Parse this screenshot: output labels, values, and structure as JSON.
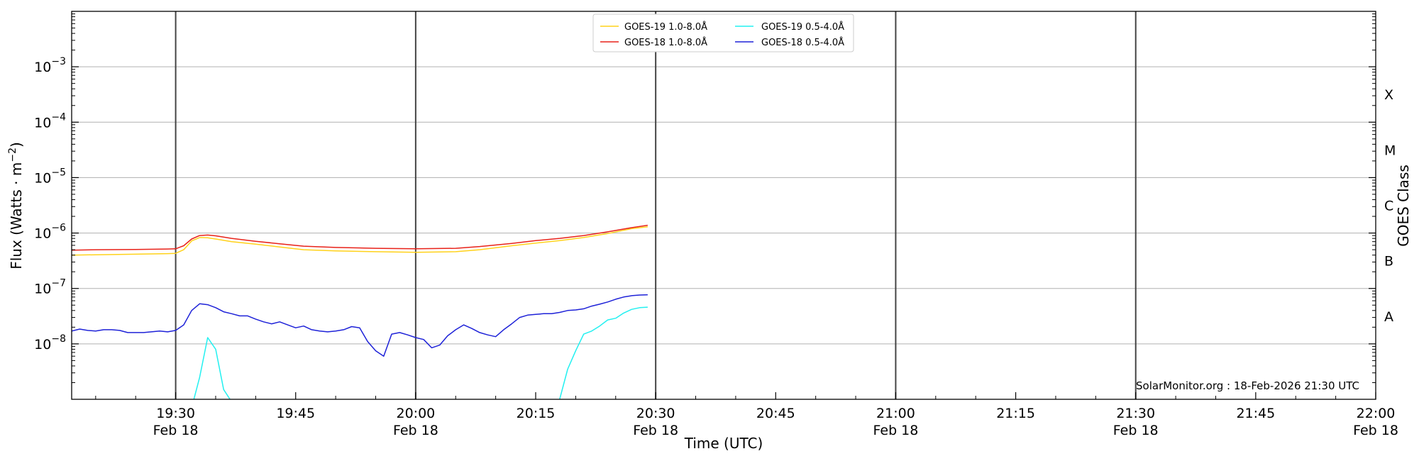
{
  "chart_data": {
    "type": "line",
    "xlabel": "Time (UTC)",
    "ylabel": "Flux (Watts · m",
    "ylabel_exp": "−2",
    "ylabel_close": ")",
    "right_label": "GOES Class",
    "date_label": "Feb 18",
    "x_start": "19:17",
    "x_end": "22:00",
    "x_ticks": [
      {
        "t": "19:30",
        "date": true
      },
      {
        "t": "19:45",
        "date": false
      },
      {
        "t": "20:00",
        "date": true
      },
      {
        "t": "20:15",
        "date": false
      },
      {
        "t": "20:30",
        "date": true
      },
      {
        "t": "20:45",
        "date": false
      },
      {
        "t": "21:00",
        "date": true
      },
      {
        "t": "21:15",
        "date": false
      },
      {
        "t": "21:30",
        "date": true
      },
      {
        "t": "21:45",
        "date": false
      },
      {
        "t": "22:00",
        "date": true
      }
    ],
    "vlines": [
      "19:30",
      "20:00",
      "20:30",
      "21:00",
      "21:30"
    ],
    "y_scale": "log",
    "y_range_exp": [
      -9,
      -2
    ],
    "y_ticks_exp": [
      -8,
      -7,
      -6,
      -5,
      -4,
      -3
    ],
    "grid": "horizontal",
    "goes_classes": [
      {
        "label": "A",
        "exp": -7.5
      },
      {
        "label": "B",
        "exp": -6.5
      },
      {
        "label": "C",
        "exp": -5.5
      },
      {
        "label": "M",
        "exp": -4.5
      },
      {
        "label": "X",
        "exp": -3.5
      }
    ],
    "legend_position": "top-center",
    "footer": "SolarMonitor.org : 18-Feb-2026 21:30 UTC",
    "series": [
      {
        "name": "GOES-19 1.0-8.0Å",
        "color": "#ffd21a",
        "points": [
          [
            "19:17",
            4e-07
          ],
          [
            "19:20",
            4.05e-07
          ],
          [
            "19:25",
            4.15e-07
          ],
          [
            "19:29",
            4.25e-07
          ],
          [
            "19:30",
            4.3e-07
          ],
          [
            "19:31",
            5e-07
          ],
          [
            "19:32",
            7.2e-07
          ],
          [
            "19:33",
            8.3e-07
          ],
          [
            "19:34",
            8.2e-07
          ],
          [
            "19:35",
            7.8e-07
          ],
          [
            "19:37",
            7e-07
          ],
          [
            "19:40",
            6.3e-07
          ],
          [
            "19:43",
            5.6e-07
          ],
          [
            "19:46",
            5e-07
          ],
          [
            "19:50",
            4.75e-07
          ],
          [
            "19:55",
            4.6e-07
          ],
          [
            "20:00",
            4.5e-07
          ],
          [
            "20:05",
            4.6e-07
          ],
          [
            "20:08",
            5e-07
          ],
          [
            "20:12",
            5.9e-07
          ],
          [
            "20:15",
            6.6e-07
          ],
          [
            "20:18",
            7.3e-07
          ],
          [
            "20:21",
            8.3e-07
          ],
          [
            "20:24",
            9.8e-07
          ],
          [
            "20:27",
            1.2e-06
          ],
          [
            "20:29",
            1.3e-06
          ]
        ]
      },
      {
        "name": "GOES-18 1.0-8.0Å",
        "color": "#e8221a",
        "points": [
          [
            "19:17",
            4.9e-07
          ],
          [
            "19:20",
            5e-07
          ],
          [
            "19:25",
            5.05e-07
          ],
          [
            "19:29",
            5.15e-07
          ],
          [
            "19:30",
            5.2e-07
          ],
          [
            "19:31",
            5.9e-07
          ],
          [
            "19:32",
            7.8e-07
          ],
          [
            "19:33",
            9e-07
          ],
          [
            "19:34",
            9.2e-07
          ],
          [
            "19:35",
            8.9e-07
          ],
          [
            "19:37",
            8e-07
          ],
          [
            "19:40",
            7.1e-07
          ],
          [
            "19:43",
            6.4e-07
          ],
          [
            "19:46",
            5.8e-07
          ],
          [
            "19:50",
            5.5e-07
          ],
          [
            "19:55",
            5.3e-07
          ],
          [
            "20:00",
            5.2e-07
          ],
          [
            "20:05",
            5.3e-07
          ],
          [
            "20:08",
            5.7e-07
          ],
          [
            "20:12",
            6.5e-07
          ],
          [
            "20:15",
            7.3e-07
          ],
          [
            "20:18",
            8e-07
          ],
          [
            "20:21",
            9e-07
          ],
          [
            "20:24",
            1.05e-06
          ],
          [
            "20:27",
            1.25e-06
          ],
          [
            "20:29",
            1.38e-06
          ]
        ]
      },
      {
        "name": "GOES-19 0.5-4.0Å",
        "color": "#22f0f0",
        "points": [
          [
            "19:32",
            7e-10
          ],
          [
            "19:33",
            2.5e-09
          ],
          [
            "19:34",
            1.3e-08
          ],
          [
            "19:35",
            8e-09
          ],
          [
            "19:36",
            1.5e-09
          ],
          [
            "19:37",
            9e-10
          ],
          [
            "19:38",
            7e-10
          ],
          [
            "20:17",
            7e-10
          ],
          [
            "20:18",
            1e-09
          ],
          [
            "20:19",
            3.5e-09
          ],
          [
            "20:20",
            7.5e-09
          ],
          [
            "20:21",
            1.5e-08
          ],
          [
            "20:22",
            1.7e-08
          ],
          [
            "20:23",
            2.1e-08
          ],
          [
            "20:24",
            2.7e-08
          ],
          [
            "20:25",
            2.9e-08
          ],
          [
            "20:26",
            3.6e-08
          ],
          [
            "20:27",
            4.2e-08
          ],
          [
            "20:28",
            4.5e-08
          ],
          [
            "20:29",
            4.6e-08
          ]
        ]
      },
      {
        "name": "GOES-18 0.5-4.0Å",
        "color": "#1e22d8",
        "points": [
          [
            "19:17",
            1.7e-08
          ],
          [
            "19:18",
            1.85e-08
          ],
          [
            "19:19",
            1.75e-08
          ],
          [
            "19:20",
            1.7e-08
          ],
          [
            "19:21",
            1.8e-08
          ],
          [
            "19:22",
            1.8e-08
          ],
          [
            "19:23",
            1.75e-08
          ],
          [
            "19:24",
            1.6e-08
          ],
          [
            "19:26",
            1.6e-08
          ],
          [
            "19:28",
            1.7e-08
          ],
          [
            "19:29",
            1.65e-08
          ],
          [
            "19:30",
            1.75e-08
          ],
          [
            "19:31",
            2.2e-08
          ],
          [
            "19:32",
            4e-08
          ],
          [
            "19:33",
            5.3e-08
          ],
          [
            "19:34",
            5.1e-08
          ],
          [
            "19:35",
            4.5e-08
          ],
          [
            "19:36",
            3.8e-08
          ],
          [
            "19:37",
            3.5e-08
          ],
          [
            "19:38",
            3.2e-08
          ],
          [
            "19:39",
            3.2e-08
          ],
          [
            "19:40",
            2.8e-08
          ],
          [
            "19:41",
            2.5e-08
          ],
          [
            "19:42",
            2.3e-08
          ],
          [
            "19:43",
            2.5e-08
          ],
          [
            "19:44",
            2.2e-08
          ],
          [
            "19:45",
            1.95e-08
          ],
          [
            "19:46",
            2.1e-08
          ],
          [
            "19:47",
            1.8e-08
          ],
          [
            "19:48",
            1.7e-08
          ],
          [
            "19:49",
            1.65e-08
          ],
          [
            "19:50",
            1.7e-08
          ],
          [
            "19:51",
            1.8e-08
          ],
          [
            "19:52",
            2.05e-08
          ],
          [
            "19:53",
            1.95e-08
          ],
          [
            "19:54",
            1.1e-08
          ],
          [
            "19:55",
            7.5e-09
          ],
          [
            "19:56",
            6e-09
          ],
          [
            "19:57",
            1.5e-08
          ],
          [
            "19:58",
            1.6e-08
          ],
          [
            "19:59",
            1.45e-08
          ],
          [
            "20:00",
            1.3e-08
          ],
          [
            "20:01",
            1.2e-08
          ],
          [
            "20:02",
            8.5e-09
          ],
          [
            "20:03",
            9.5e-09
          ],
          [
            "20:04",
            1.4e-08
          ],
          [
            "20:05",
            1.8e-08
          ],
          [
            "20:06",
            2.2e-08
          ],
          [
            "20:07",
            1.9e-08
          ],
          [
            "20:08",
            1.6e-08
          ],
          [
            "20:09",
            1.45e-08
          ],
          [
            "20:10",
            1.35e-08
          ],
          [
            "20:11",
            1.8e-08
          ],
          [
            "20:12",
            2.3e-08
          ],
          [
            "20:13",
            3e-08
          ],
          [
            "20:14",
            3.3e-08
          ],
          [
            "20:15",
            3.4e-08
          ],
          [
            "20:16",
            3.5e-08
          ],
          [
            "20:17",
            3.5e-08
          ],
          [
            "20:18",
            3.7e-08
          ],
          [
            "20:19",
            4e-08
          ],
          [
            "20:20",
            4.1e-08
          ],
          [
            "20:21",
            4.3e-08
          ],
          [
            "20:22",
            4.8e-08
          ],
          [
            "20:23",
            5.2e-08
          ],
          [
            "20:24",
            5.7e-08
          ],
          [
            "20:25",
            6.4e-08
          ],
          [
            "20:26",
            7e-08
          ],
          [
            "20:27",
            7.4e-08
          ],
          [
            "20:28",
            7.6e-08
          ],
          [
            "20:29",
            7.7e-08
          ]
        ]
      }
    ]
  }
}
